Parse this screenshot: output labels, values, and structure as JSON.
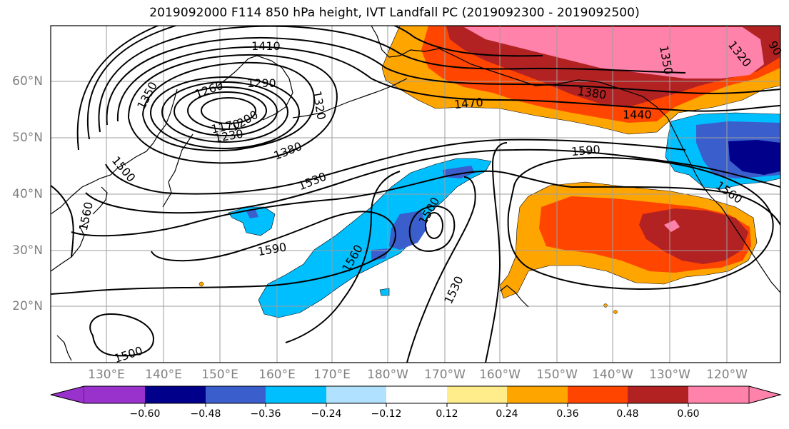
{
  "title": "2019092000 F114 850 hPa height, IVT Landfall PC (2019092300 - 2019092500)",
  "latitude_labels": [
    "60°N",
    "50°N",
    "40°N",
    "30°N",
    "20°N"
  ],
  "longitude_labels": [
    "130°E",
    "140°E",
    "150°E",
    "160°E",
    "170°E",
    "180°W",
    "170°W",
    "160°W",
    "150°W",
    "140°W",
    "130°W",
    "120°W"
  ],
  "contour_labels": {
    "c1410": "1410",
    "c1350a": "1350",
    "c1260": "1260",
    "c1290": "1290",
    "c1320a": "1320",
    "c1170": "1170",
    "c1200": "1200",
    "c1230": "1230",
    "c1380a": "1380",
    "c1500a": "1500",
    "c1530a": "1530",
    "c1560a": "1560",
    "c1590a": "1590",
    "c1560b": "1560",
    "c1500b": "1500",
    "c1530b": "1530",
    "c1470": "1470",
    "c1590b": "1590",
    "c1380b": "1380",
    "c1440": "1440",
    "c1350b": "1350",
    "c1320b": "1320",
    "c1560c": "1560",
    "c1500c": "1500",
    "c1290b": "90"
  },
  "colorbar": {
    "ticks": [
      "−0.60",
      "−0.48",
      "−0.36",
      "−0.24",
      "−0.12",
      "0.12",
      "0.24",
      "0.36",
      "0.48",
      "0.60"
    ],
    "colors": {
      "under": "#9932cc",
      "b1": "#00008b",
      "b2": "#3a5fcd",
      "b3": "#00bfff",
      "b4": "#b0e2ff",
      "b5": "#ffffff",
      "b6": "#ffffff",
      "b7": "#ffec8b",
      "b8": "#ffa500",
      "b9": "#ff4500",
      "b10": "#b22222",
      "over": "#ff82ab"
    }
  },
  "colors": {
    "neg_strong": "#00008b",
    "neg_med": "#3a5fcd",
    "neg_light": "#00bfff",
    "pos_orange": "#ffa500",
    "pos_redorange": "#ff4500",
    "pos_darkred": "#b22222",
    "pos_pink": "#ff82ab"
  }
}
